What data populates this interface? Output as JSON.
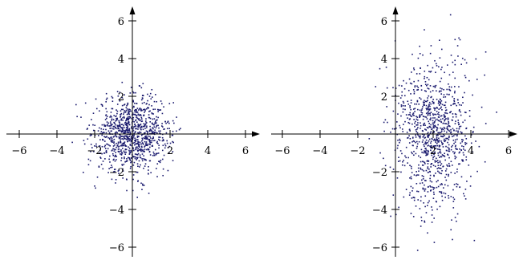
{
  "chart_data": [
    {
      "type": "scatter",
      "title": "",
      "xlabel": "",
      "ylabel": "",
      "xlim": [
        -7,
        7
      ],
      "ylim": [
        -7,
        7
      ],
      "grid": false,
      "distribution": {
        "mean": [
          0,
          0
        ],
        "sd": [
          1,
          1
        ],
        "n": 1000
      },
      "x_ticks": [
        -6,
        -4,
        -2,
        2,
        4,
        6
      ],
      "y_ticks": [
        -6,
        -4,
        -2,
        2,
        4,
        6
      ],
      "x_tick_labels": [
        "−6",
        "−4",
        "−2",
        "2",
        "4",
        "6"
      ],
      "y_tick_labels": [
        "−6",
        "−4",
        "−2",
        "2",
        "4",
        "6"
      ]
    },
    {
      "type": "scatter",
      "title": "",
      "xlabel": "",
      "ylabel": "",
      "xlim": [
        -7,
        7
      ],
      "ylim": [
        -7,
        7
      ],
      "grid": false,
      "distribution": {
        "mean": [
          2,
          0
        ],
        "sd": [
          1,
          2
        ],
        "n": 1000
      },
      "x_ticks": [
        -6,
        -4,
        -2,
        2,
        4,
        6
      ],
      "y_ticks": [
        -6,
        -4,
        -2,
        2,
        4,
        6
      ],
      "x_tick_labels": [
        "−6",
        "−4",
        "−2",
        "2",
        "4",
        "6"
      ],
      "y_tick_labels": [
        "−6",
        "−4",
        "−2",
        "2",
        "4",
        "6"
      ]
    }
  ],
  "colors": {
    "points": "#1a1a6e",
    "axes": "#000000"
  }
}
